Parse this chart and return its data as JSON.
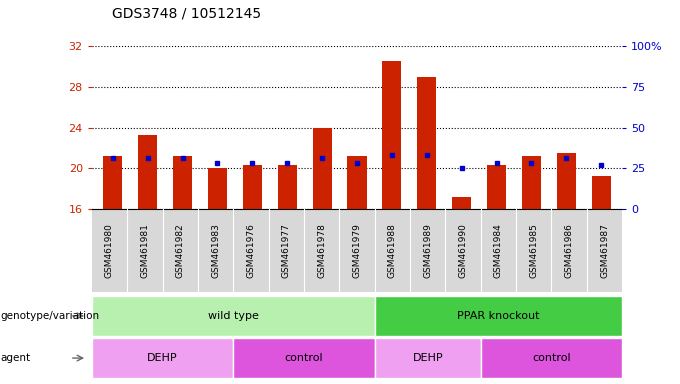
{
  "title": "GDS3748 / 10512145",
  "samples": [
    "GSM461980",
    "GSM461981",
    "GSM461982",
    "GSM461983",
    "GSM461976",
    "GSM461977",
    "GSM461978",
    "GSM461979",
    "GSM461988",
    "GSM461989",
    "GSM461990",
    "GSM461984",
    "GSM461985",
    "GSM461986",
    "GSM461987"
  ],
  "red_values": [
    21.2,
    23.3,
    21.2,
    20.0,
    20.3,
    20.3,
    24.0,
    21.2,
    30.5,
    29.0,
    17.2,
    20.3,
    21.2,
    21.5,
    19.3
  ],
  "blue_values": [
    21.0,
    21.0,
    21.0,
    20.5,
    20.5,
    20.5,
    21.0,
    20.5,
    21.3,
    21.3,
    20.0,
    20.5,
    20.5,
    21.0,
    20.3
  ],
  "ymin": 16,
  "ymax": 32,
  "yticks": [
    16,
    20,
    24,
    28,
    32
  ],
  "right_ytick_vals": [
    0,
    25,
    50,
    75,
    100
  ],
  "right_ytick_labels": [
    "0",
    "25",
    "50",
    "75",
    "100%"
  ],
  "bar_color": "#cc2200",
  "dot_color": "#0000cc",
  "plot_bg": "#ffffff",
  "xtick_bg": "#d8d8d8",
  "genotype_groups": [
    {
      "label": "wild type",
      "start": 0,
      "end": 8,
      "color": "#b8f0b0"
    },
    {
      "label": "PPAR knockout",
      "start": 8,
      "end": 15,
      "color": "#44cc44"
    }
  ],
  "agent_groups": [
    {
      "label": "DEHP",
      "start": 0,
      "end": 4,
      "color": "#f0a0f0"
    },
    {
      "label": "control",
      "start": 4,
      "end": 8,
      "color": "#dd55dd"
    },
    {
      "label": "DEHP",
      "start": 8,
      "end": 11,
      "color": "#f0a0f0"
    },
    {
      "label": "control",
      "start": 11,
      "end": 15,
      "color": "#dd55dd"
    }
  ],
  "legend_count_color": "#cc2200",
  "legend_dot_color": "#0000cc",
  "title_fontsize": 10,
  "tick_label_fontsize": 6.5,
  "axis_label_fontsize": 8,
  "annotation_fontsize": 8,
  "legend_fontsize": 7.5
}
